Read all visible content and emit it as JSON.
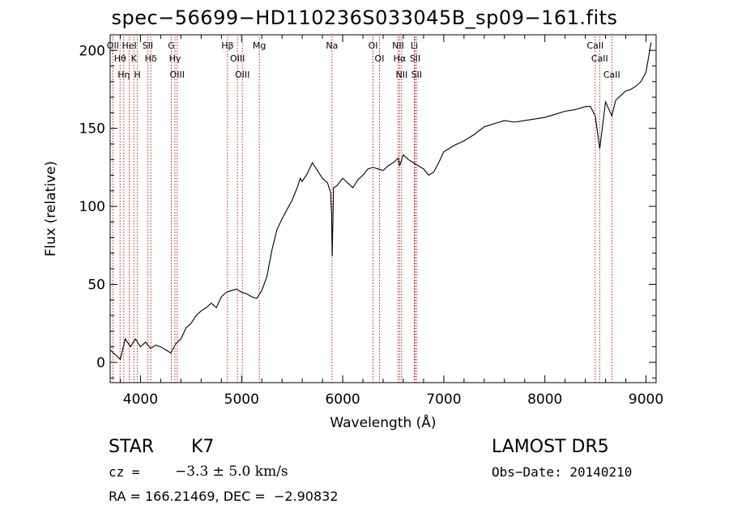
{
  "chart_data": {
    "type": "line",
    "title": "spec−56699−HD110236S033045B_sp09−161.fits",
    "xlabel": "Wavelength (Å)",
    "ylabel": "Flux (relative)",
    "xlim": [
      3700,
      9100
    ],
    "ylim": [
      -13,
      210
    ],
    "xticks": [
      4000,
      5000,
      6000,
      7000,
      8000,
      9000
    ],
    "yticks": [
      0,
      50,
      100,
      150,
      200
    ],
    "grid": false,
    "line_color": "#000000",
    "marker_color": "#cc0000",
    "series": [
      {
        "x": [
          3700,
          3750,
          3800,
          3850,
          3900,
          3950,
          4000,
          4050,
          4100,
          4150,
          4200,
          4250,
          4300,
          4350,
          4400,
          4450,
          4500,
          4550,
          4600,
          4650,
          4700,
          4750,
          4800,
          4850,
          4900,
          4950,
          5000,
          5050,
          5100,
          5150,
          5200,
          5250,
          5300,
          5350,
          5400,
          5450,
          5500,
          5550,
          5580,
          5600,
          5650,
          5700,
          5750,
          5800,
          5850,
          5880,
          5890,
          5896,
          5910,
          5940,
          6000,
          6050,
          6100,
          6150,
          6200,
          6250,
          6300,
          6350,
          6400,
          6450,
          6500,
          6550,
          6563,
          6600,
          6650,
          6700,
          6750,
          6800,
          6850,
          6900,
          6950,
          7000,
          7100,
          7200,
          7300,
          7400,
          7500,
          7600,
          7700,
          7800,
          7900,
          8000,
          8100,
          8200,
          8300,
          8400,
          8450,
          8498,
          8542,
          8600,
          8662,
          8700,
          8750,
          8800,
          8850,
          8900,
          8950,
          9000,
          9050
        ],
        "y": [
          8,
          5,
          2,
          15,
          10,
          15,
          10,
          13,
          9,
          11,
          10,
          8,
          6,
          12,
          15,
          22,
          25,
          30,
          33,
          35,
          38,
          35,
          42,
          45,
          46,
          47,
          45,
          44,
          42,
          41,
          46,
          55,
          72,
          85,
          92,
          98,
          104,
          112,
          118,
          116,
          121,
          128,
          123,
          118,
          115,
          109,
          96,
          68,
          112,
          113,
          118,
          115,
          112,
          117,
          120,
          124,
          125,
          124,
          123,
          126,
          128,
          131,
          126,
          133,
          130,
          128,
          126,
          124,
          120,
          122,
          128,
          135,
          139,
          142,
          146,
          151,
          153,
          155,
          154,
          155,
          156,
          157,
          159,
          161,
          162,
          164,
          164,
          158,
          137,
          167,
          158,
          168,
          171,
          174,
          175,
          177,
          180,
          186,
          205
        ]
      }
    ],
    "line_markers": [
      {
        "x": 3727,
        "label": "OII"
      },
      {
        "x": 3798,
        "label": "Hθ"
      },
      {
        "x": 3835,
        "label": "Hη"
      },
      {
        "x": 3889,
        "label": "HeI"
      },
      {
        "x": 3934,
        "label": "K"
      },
      {
        "x": 3970,
        "label": "H"
      },
      {
        "x": 4072,
        "label": "SII"
      },
      {
        "x": 4102,
        "label": "Hδ"
      },
      {
        "x": 4305,
        "label": "G"
      },
      {
        "x": 4341,
        "label": "Hγ"
      },
      {
        "x": 4363,
        "label": "OIII"
      },
      {
        "x": 4861,
        "label": "Hβ"
      },
      {
        "x": 4959,
        "label": "OIII"
      },
      {
        "x": 5007,
        "label": "OIII"
      },
      {
        "x": 5175,
        "label": "Mg"
      },
      {
        "x": 5894,
        "label": "Na"
      },
      {
        "x": 6300,
        "label": "OI"
      },
      {
        "x": 6364,
        "label": "OI"
      },
      {
        "x": 6548,
        "label": "NII"
      },
      {
        "x": 6563,
        "label": "Hα"
      },
      {
        "x": 6583,
        "label": "NII"
      },
      {
        "x": 6708,
        "label": "Li"
      },
      {
        "x": 6716,
        "label": "SII"
      },
      {
        "x": 6731,
        "label": "SII"
      },
      {
        "x": 8498,
        "label": "CaII"
      },
      {
        "x": 8542,
        "label": "CaII"
      },
      {
        "x": 8662,
        "label": "CaII"
      }
    ]
  },
  "info": {
    "class": "STAR",
    "subclass": "K7",
    "survey": "LAMOST DR5",
    "cz_label": "cz =",
    "cz_value": "−3.3 ± 5.0 km/s",
    "obs_date": "Obs−Date: 20140210",
    "coords": "RA = 166.21469, DEC =  −2.90832"
  }
}
